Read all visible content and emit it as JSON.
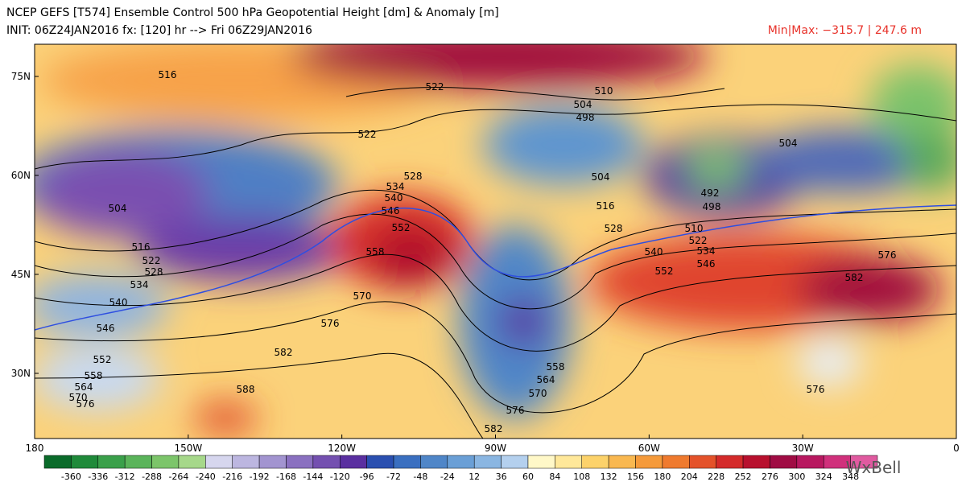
{
  "header": {
    "line1": "NCEP GEFS [T574] Ensemble Control 500 hPa Geopotential Height [dm] & Anomaly [m]",
    "line2": "INIT: 06Z24JAN2016 fx: [120] hr --> Fri 06Z29JAN2016",
    "minmax": "Min|Max: −315.7 | 247.6 m"
  },
  "lat_labels": [
    "75N",
    "60N",
    "45N",
    "30N"
  ],
  "lon_labels": [
    "180",
    "150W",
    "120W",
    "90W",
    "60W",
    "30W",
    "0"
  ],
  "colorbar": [
    -360,
    -336,
    -312,
    -288,
    -264,
    -240,
    -216,
    -192,
    -168,
    -144,
    -120,
    -96,
    -72,
    -48,
    -24,
    12,
    36,
    60,
    84,
    108,
    132,
    156,
    180,
    204,
    228,
    252,
    276,
    300,
    324,
    348
  ],
  "contour_labels": [
    516,
    522,
    510,
    504,
    498,
    522,
    504,
    528,
    534,
    540,
    546,
    552,
    504,
    516,
    528,
    516,
    522,
    528,
    534,
    540,
    546,
    558,
    570,
    576,
    582,
    552,
    558,
    564,
    570,
    576,
    588,
    492,
    498,
    504,
    510,
    522,
    534,
    540,
    546,
    552,
    576,
    582,
    576,
    558,
    564,
    570,
    576,
    582
  ],
  "logo": "WxBell"
}
